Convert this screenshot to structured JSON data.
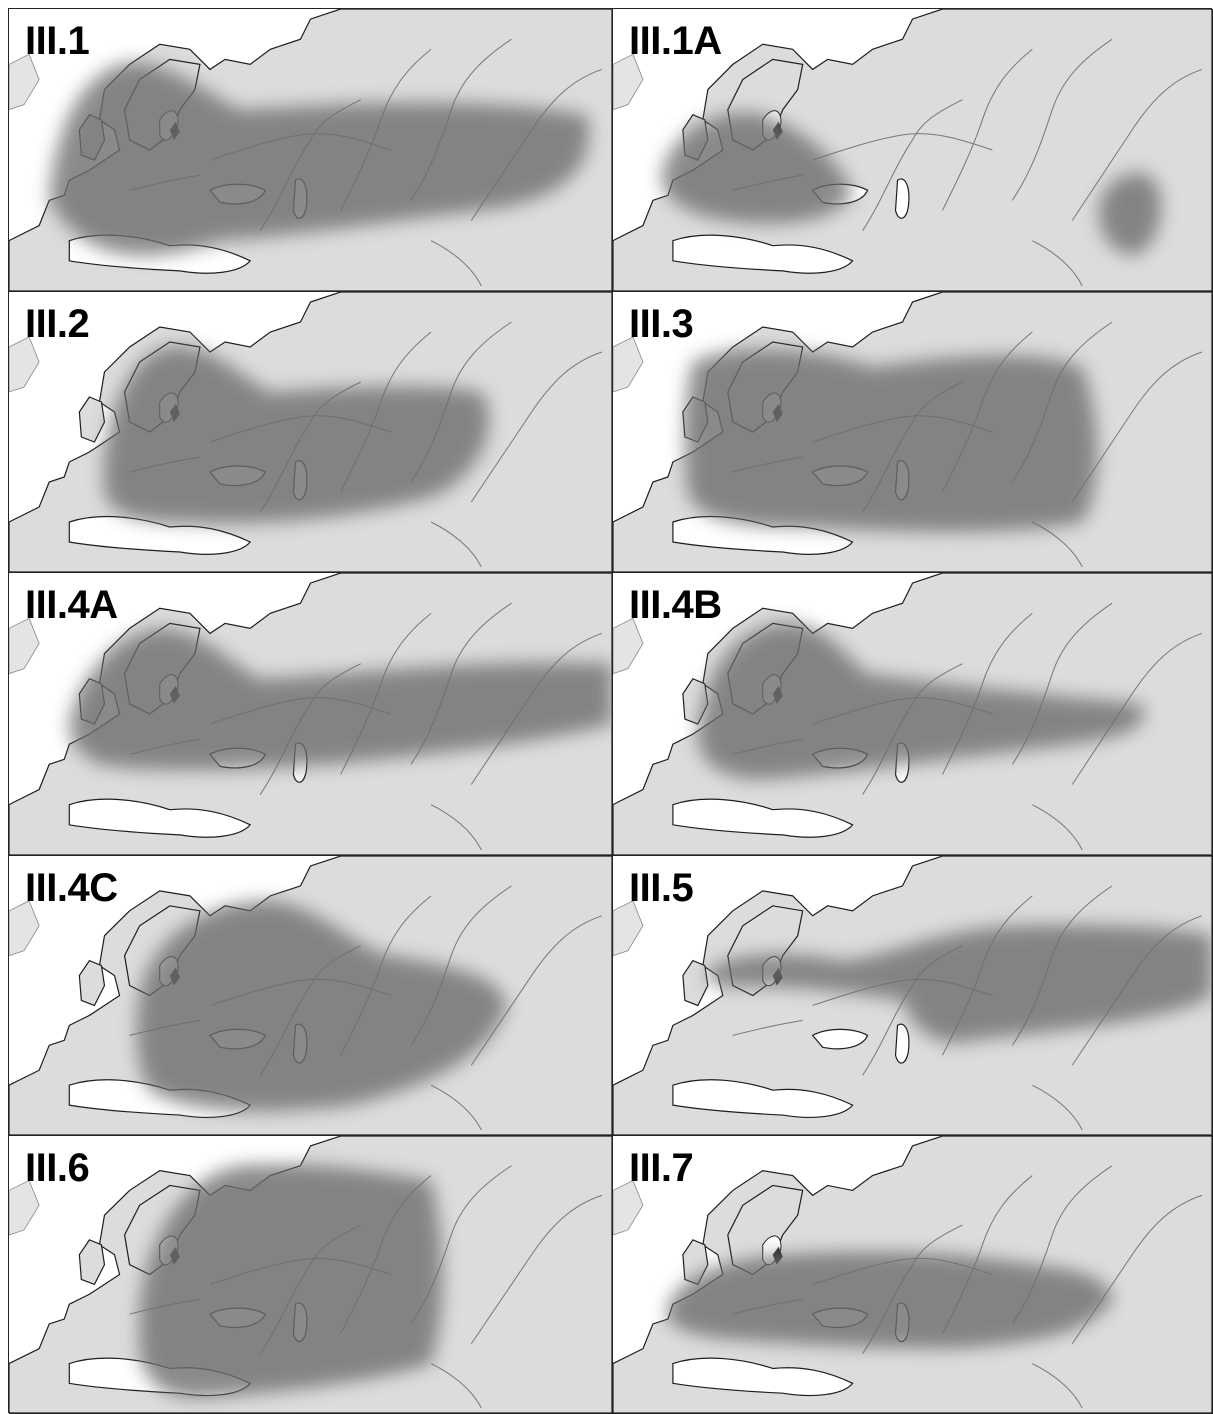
{
  "figure": {
    "panels": [
      {
        "id": "p1",
        "label": "III.1"
      },
      {
        "id": "p2",
        "label": "III.1A"
      },
      {
        "id": "p3",
        "label": "III.2"
      },
      {
        "id": "p4",
        "label": "III.3"
      },
      {
        "id": "p5",
        "label": "III.4A"
      },
      {
        "id": "p6",
        "label": "III.4B"
      },
      {
        "id": "p7",
        "label": "III.4C"
      },
      {
        "id": "p8",
        "label": "III.5"
      },
      {
        "id": "p9",
        "label": "III.6"
      },
      {
        "id": "p10",
        "label": "III.7"
      }
    ],
    "colors": {
      "land": "#dcdcdc",
      "sea": "#ffffff",
      "range_shading": "#6e6e6e",
      "coastline": "#1e1e1e",
      "rivers": "#777777"
    }
  }
}
